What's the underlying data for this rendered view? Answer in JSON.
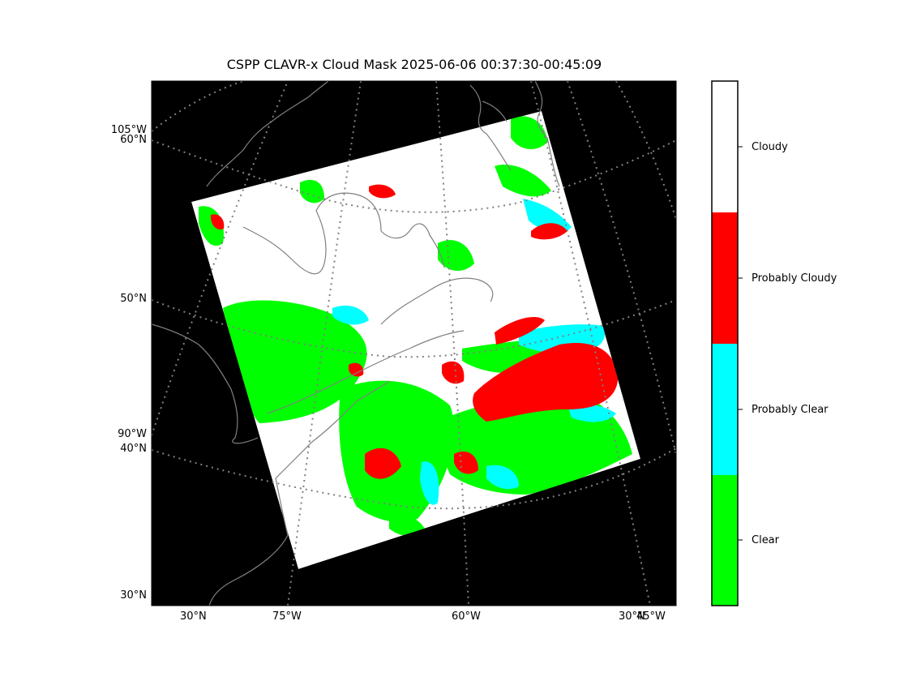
{
  "title": "CSPP CLAVR-x Cloud Mask 2025-06-06 00:37:30-00:45:09",
  "colors": {
    "background": "#000000",
    "coastline": "#808080",
    "graticule": "#808080",
    "clear": "#00ff00",
    "probably_clear": "#00ffff",
    "probably_cloudy": "#ff0000",
    "cloudy": "#ffffff"
  },
  "axis_labels": {
    "left": {
      "lon_105w": "105°W",
      "lat_60n": "60°N",
      "lat_50n": "50°N",
      "lon_90w": "90°W",
      "lat_40n": "40°N",
      "lat_30n": "30°N"
    },
    "bottom": {
      "lat_30n": "30°N",
      "lon_75w": "75°W",
      "lon_60w": "60°W",
      "lat_30n_right": "30°N",
      "lon_45w": "45°W"
    }
  },
  "colorbar": {
    "categories": [
      {
        "label": "Cloudy",
        "color": "#ffffff"
      },
      {
        "label": "Probably Cloudy",
        "color": "#ff0000"
      },
      {
        "label": "Probably Clear",
        "color": "#00ffff"
      },
      {
        "label": "Clear",
        "color": "#00ff00"
      }
    ]
  }
}
